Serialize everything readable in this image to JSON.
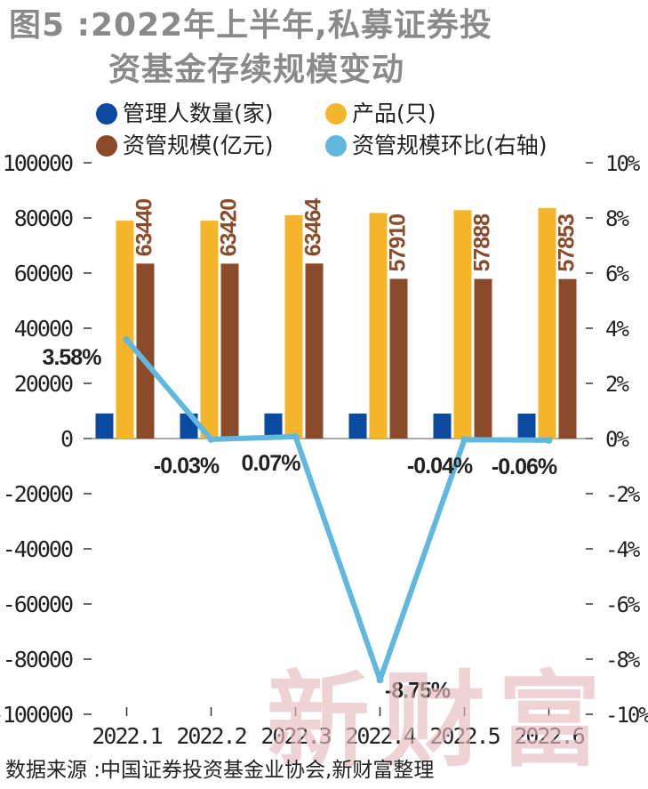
{
  "title": {
    "line1": "图5 :2022年上半年,私募证券投",
    "line2": "资基金存续规模变动"
  },
  "source": "数据来源 :中国证券投资基金业协会,新财富整理",
  "watermark": "新财富",
  "colors": {
    "managers": "#0a4aa0",
    "products": "#f5b52a",
    "scale": "#8b4b2b",
    "ratio": "#60b8de"
  },
  "chart_data": {
    "type": "bar",
    "categories": [
      "2022.1",
      "2022.2",
      "2022.3",
      "2022.4",
      "2022.5",
      "2022.6"
    ],
    "y_left": {
      "ylim": [
        -100000,
        100000
      ],
      "ticks": [
        "100000",
        "80000",
        "60000",
        "40000",
        "20000",
        "0",
        "-20000",
        "-40000",
        "-60000",
        "-80000",
        "-100000"
      ]
    },
    "y_right": {
      "ylim": [
        -10,
        10
      ],
      "ticks": [
        "10%",
        "8%",
        "6%",
        "4%",
        "2%",
        "0%",
        "-2%",
        "-4%",
        "-6%",
        "-8%",
        "-10%"
      ]
    },
    "legend": [
      {
        "label": "管理人数量(家)",
        "color_key": "managers"
      },
      {
        "label": "产品(只)",
        "color_key": "products"
      },
      {
        "label": "资管规模(亿元)",
        "color_key": "scale"
      },
      {
        "label": "资管规模环比(右轴)",
        "color_key": "ratio"
      }
    ],
    "series": [
      {
        "name": "管理人数量(家)",
        "kind": "bar",
        "axis": "left",
        "values": [
          9100,
          9080,
          9100,
          9070,
          9060,
          9050
        ]
      },
      {
        "name": "产品(只)",
        "kind": "bar",
        "axis": "left",
        "values": [
          79000,
          79000,
          81000,
          81800,
          82800,
          83600
        ]
      },
      {
        "name": "资管规模(亿元)",
        "kind": "bar",
        "axis": "left",
        "values": [
          63440,
          63420,
          63464,
          57910,
          57888,
          57853
        ],
        "labels": [
          "63440",
          "63420",
          "63464",
          "57910",
          "57888",
          "57853"
        ]
      },
      {
        "name": "资管规模环比(右轴)",
        "kind": "line",
        "axis": "right",
        "values": [
          3.58,
          -0.03,
          0.07,
          -8.75,
          -0.04,
          -0.06
        ],
        "labels": [
          "3.58%",
          "-0.03%",
          "0.07%",
          "-8.75%",
          "-0.04%",
          "-0.06%"
        ]
      }
    ]
  }
}
